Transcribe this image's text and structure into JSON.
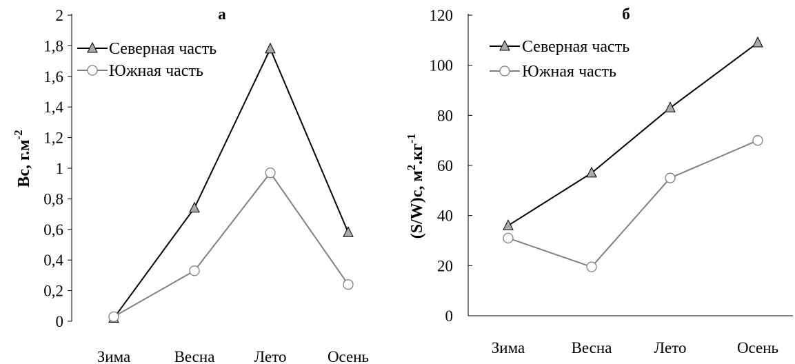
{
  "chart_data": [
    {
      "type": "line",
      "title": "а",
      "ylabel": "Bc, г.м",
      "ylabel_sup": "-2",
      "categories": [
        "Зима",
        "Весна",
        "Лето",
        "Осень"
      ],
      "ylim": [
        0,
        2
      ],
      "yticks": [
        "0",
        "0,2",
        "0,4",
        "0,6",
        "0,8",
        "1",
        "1,2",
        "1,4",
        "1,6",
        "1,8",
        "2"
      ],
      "legend_position": "top-left",
      "grid": false,
      "series": [
        {
          "name": "Северная часть",
          "marker": "triangle",
          "color": "#000000",
          "marker_fill": "#a9a9a9",
          "values": [
            0.02,
            0.74,
            1.78,
            0.58
          ]
        },
        {
          "name": "Южная часть",
          "marker": "circle",
          "color": "#808080",
          "marker_fill": "#ffffff",
          "values": [
            0.03,
            0.33,
            0.97,
            0.24
          ]
        }
      ]
    },
    {
      "type": "line",
      "title": "б",
      "ylabel": "(S/W)c,  м",
      "ylabel_sup": "2",
      "ylabel_tail": ".кг",
      "ylabel_tail_sup": "-1",
      "categories": [
        "Зима",
        "Весна",
        "Лето",
        "Осень"
      ],
      "ylim": [
        0,
        120
      ],
      "yticks": [
        "0",
        "20",
        "40",
        "60",
        "80",
        "100",
        "120"
      ],
      "legend_position": "top-left",
      "grid": false,
      "series": [
        {
          "name": "Северная часть",
          "marker": "triangle",
          "color": "#000000",
          "marker_fill": "#a9a9a9",
          "values": [
            36,
            57,
            83,
            109
          ]
        },
        {
          "name": "Южная часть",
          "marker": "circle",
          "color": "#808080",
          "marker_fill": "#ffffff",
          "values": [
            31,
            19.5,
            55,
            70
          ]
        }
      ]
    }
  ]
}
